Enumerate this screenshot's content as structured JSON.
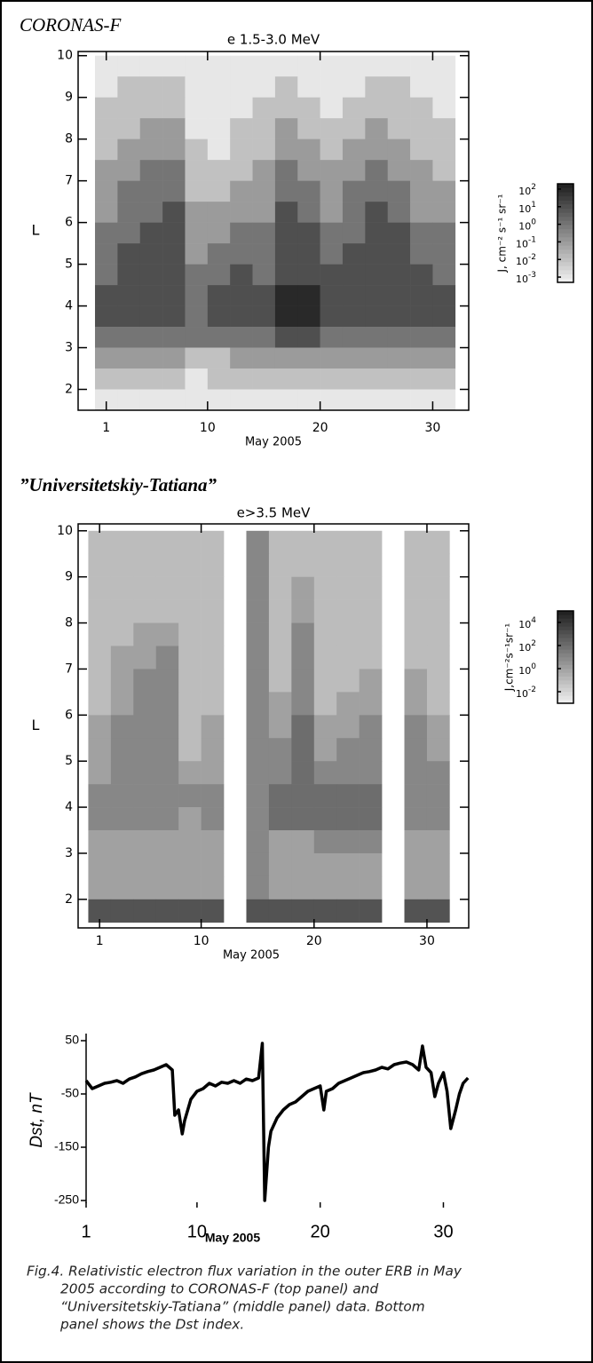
{
  "chart_data": [
    {
      "type": "heatmap",
      "panel_label": "CORONAS-F",
      "title": "e 1.5-3.0 MeV",
      "x_label": "May 2005",
      "y_label": "L",
      "x": [
        1,
        3,
        5,
        7,
        9,
        11,
        13,
        15,
        17,
        19,
        21,
        23,
        25,
        27,
        29,
        31
      ],
      "y": [
        9.75,
        9.25,
        8.75,
        8.25,
        7.75,
        7.25,
        6.75,
        6.25,
        5.75,
        5.25,
        4.75,
        4.25,
        3.75,
        3.25,
        2.75,
        2.25,
        1.75
      ],
      "z": [
        [
          -3,
          -3,
          -3,
          -3,
          -3,
          -3,
          -3,
          -3,
          -3,
          -3,
          -3,
          -3,
          -3,
          -3,
          -3,
          -3
        ],
        [
          -3,
          -2,
          -2,
          -2,
          -3,
          -3,
          -3,
          -3,
          -2,
          -3,
          -3,
          -3,
          -2,
          -2,
          -3,
          -3
        ],
        [
          -2,
          -2,
          -2,
          -2,
          -3,
          -3,
          -3,
          -2,
          -2,
          -2,
          -3,
          -2,
          -2,
          -2,
          -2,
          -3
        ],
        [
          -2,
          -2,
          -1,
          -1,
          -3,
          -3,
          -2,
          -2,
          -1,
          -2,
          -2,
          -2,
          -1,
          -2,
          -2,
          -2
        ],
        [
          -2,
          -1,
          -1,
          -1,
          -2,
          -3,
          -2,
          -2,
          -1,
          -1,
          -2,
          -1,
          -1,
          -1,
          -2,
          -2
        ],
        [
          -1,
          -1,
          0,
          0,
          -2,
          -2,
          -2,
          -1,
          0,
          -1,
          -1,
          -1,
          0,
          -1,
          -1,
          -2
        ],
        [
          -1,
          0,
          0,
          0,
          -2,
          -2,
          -1,
          -1,
          0,
          0,
          -1,
          0,
          0,
          0,
          -1,
          -1
        ],
        [
          -1,
          0,
          0,
          1,
          -1,
          -1,
          -1,
          -1,
          1,
          0,
          -1,
          0,
          1,
          0,
          -1,
          -1
        ],
        [
          0,
          0,
          1,
          1,
          -1,
          -1,
          0,
          0,
          1,
          1,
          0,
          0,
          1,
          1,
          0,
          0
        ],
        [
          0,
          1,
          1,
          1,
          -1,
          0,
          0,
          0,
          1,
          1,
          0,
          1,
          1,
          1,
          0,
          0
        ],
        [
          0,
          1,
          1,
          1,
          0,
          0,
          1,
          0,
          1,
          1,
          1,
          1,
          1,
          1,
          1,
          0
        ],
        [
          1,
          1,
          1,
          1,
          0,
          1,
          1,
          1,
          2,
          2,
          1,
          1,
          1,
          1,
          1,
          1
        ],
        [
          1,
          1,
          1,
          1,
          0,
          1,
          1,
          1,
          2,
          2,
          1,
          1,
          1,
          1,
          1,
          1
        ],
        [
          0,
          0,
          0,
          0,
          0,
          0,
          0,
          0,
          1,
          1,
          0,
          0,
          0,
          0,
          0,
          0
        ],
        [
          -1,
          -1,
          -1,
          -1,
          -2,
          -2,
          -1,
          -1,
          -1,
          -1,
          -1,
          -1,
          -1,
          -1,
          -1,
          -1
        ],
        [
          -2,
          -2,
          -2,
          -2,
          -3,
          -2,
          -2,
          -2,
          -2,
          -2,
          -2,
          -2,
          -2,
          -2,
          -2,
          -2
        ],
        [
          -3,
          -3,
          -3,
          -3,
          -3,
          -3,
          -3,
          -3,
          -3,
          -3,
          -3,
          -3,
          -3,
          -3,
          -3,
          -3
        ]
      ],
      "xlim": [
        -1.5,
        33.2
      ],
      "xticks": [
        1,
        10,
        20,
        30
      ],
      "ylim": [
        1.5,
        10.1
      ],
      "yticks": [
        2,
        3,
        4,
        5,
        6,
        7,
        8,
        9,
        10
      ],
      "colormap": [
        "#f2f2f2",
        "#1e1e1e"
      ],
      "zlim": [
        -3.3,
        2.3
      ],
      "colorbar": {
        "label": "J,  cm⁻² s⁻¹ sr⁻¹",
        "ticks": [
          {
            "value": 2,
            "label": "10"
          },
          {
            "value": 1,
            "label": "10"
          },
          {
            "value": 0,
            "label": "10"
          },
          {
            "value": -1,
            "label": "10"
          },
          {
            "value": -2,
            "label": "10"
          },
          {
            "value": -3,
            "label": "10"
          }
        ]
      }
    },
    {
      "type": "heatmap",
      "panel_label": "”Universitetskiy-Tatiana”",
      "title": "e>3.5 MeV",
      "x_label": "May 2005",
      "y_label": "L",
      "x": [
        1,
        3,
        5,
        7,
        9,
        11,
        13,
        15,
        17,
        19,
        21,
        23,
        25,
        27,
        29,
        31
      ],
      "y": [
        9.75,
        9.25,
        8.75,
        8.25,
        7.75,
        7.25,
        6.75,
        6.25,
        5.75,
        5.25,
        4.75,
        4.25,
        3.75,
        3.25,
        2.75,
        2.25,
        1.75
      ],
      "z": [
        [
          -1,
          -1,
          -1,
          -1,
          -1,
          -1,
          null,
          1,
          -1,
          -1,
          -1,
          -1,
          -1,
          null,
          -1,
          -1
        ],
        [
          -1,
          -1,
          -1,
          -1,
          -1,
          -1,
          null,
          1,
          -1,
          -1,
          -1,
          -1,
          -1,
          null,
          -1,
          -1
        ],
        [
          -1,
          -1,
          -1,
          -1,
          -1,
          -1,
          null,
          1,
          -1,
          0,
          -1,
          -1,
          -1,
          null,
          -1,
          -1
        ],
        [
          -1,
          -1,
          -1,
          -1,
          -1,
          -1,
          null,
          1,
          -1,
          0,
          -1,
          -1,
          -1,
          null,
          -1,
          -1
        ],
        [
          -1,
          -1,
          0,
          0,
          -1,
          -1,
          null,
          1,
          -1,
          1,
          -1,
          -1,
          -1,
          null,
          -1,
          -1
        ],
        [
          -1,
          0,
          0,
          1,
          -1,
          -1,
          null,
          1,
          -1,
          1,
          -1,
          -1,
          -1,
          null,
          -1,
          -1
        ],
        [
          -1,
          0,
          1,
          1,
          -1,
          -1,
          null,
          1,
          -1,
          1,
          -1,
          -1,
          0,
          null,
          0,
          -1
        ],
        [
          -1,
          0,
          1,
          1,
          -1,
          -1,
          null,
          1,
          0,
          1,
          -1,
          0,
          0,
          null,
          0,
          -1
        ],
        [
          0,
          1,
          1,
          1,
          -1,
          0,
          null,
          1,
          0,
          2,
          0,
          0,
          1,
          null,
          1,
          0
        ],
        [
          0,
          1,
          1,
          1,
          -1,
          0,
          null,
          1,
          1,
          2,
          0,
          1,
          1,
          null,
          1,
          0
        ],
        [
          0,
          1,
          1,
          1,
          0,
          0,
          null,
          1,
          1,
          2,
          1,
          1,
          1,
          null,
          1,
          1
        ],
        [
          1,
          1,
          1,
          1,
          1,
          1,
          null,
          1,
          2,
          2,
          2,
          2,
          2,
          null,
          1,
          1
        ],
        [
          1,
          1,
          1,
          1,
          0,
          1,
          null,
          1,
          2,
          2,
          2,
          2,
          2,
          null,
          1,
          1
        ],
        [
          0,
          0,
          0,
          0,
          0,
          0,
          null,
          1,
          0,
          0,
          1,
          1,
          1,
          null,
          0,
          0
        ],
        [
          0,
          0,
          0,
          0,
          0,
          0,
          null,
          1,
          0,
          0,
          0,
          0,
          0,
          null,
          0,
          0
        ],
        [
          0,
          0,
          0,
          0,
          0,
          0,
          null,
          1,
          0,
          0,
          0,
          0,
          0,
          null,
          0,
          0
        ],
        [
          3,
          3,
          3,
          3,
          3,
          3,
          null,
          3,
          3,
          3,
          3,
          3,
          3,
          null,
          3,
          3
        ]
      ],
      "xlim": [
        -0.9,
        33.7
      ],
      "xticks": [
        1,
        10,
        20,
        30
      ],
      "ylim": [
        1.38,
        10.15
      ],
      "yticks": [
        2,
        3,
        4,
        5,
        6,
        7,
        8,
        9,
        10
      ],
      "colormap": [
        "#f0f0f0",
        "#1e1e1e"
      ],
      "zlim": [
        -3,
        5
      ],
      "colorbar": {
        "label": "J,cm⁻²s⁻¹sr⁻¹",
        "ticks": [
          {
            "value": 4,
            "label": "10"
          },
          {
            "value": 2,
            "label": "10"
          },
          {
            "value": 0,
            "label": "10"
          },
          {
            "value": -2,
            "label": "10"
          }
        ]
      }
    },
    {
      "type": "line",
      "x_label": "May 2005",
      "y_label": "Dst, nT",
      "color": "#000000",
      "x": [
        1,
        1.5,
        2,
        2.5,
        3,
        3.5,
        4,
        4.5,
        5,
        5.5,
        6,
        6.5,
        7,
        7.5,
        8,
        8.2,
        8.5,
        8.8,
        9,
        9.5,
        10,
        10.5,
        11,
        11.5,
        12,
        12.5,
        13,
        13.5,
        14,
        14.5,
        15,
        15.3,
        15.5,
        15.8,
        16,
        16.5,
        17,
        17.5,
        18,
        18.5,
        19,
        19.5,
        20,
        20.3,
        20.5,
        21,
        21.5,
        22,
        22.5,
        23,
        23.5,
        24,
        24.5,
        25,
        25.5,
        26,
        26.5,
        27,
        27.5,
        28,
        28.3,
        28.6,
        29,
        29.3,
        29.6,
        30,
        30.3,
        30.6,
        31,
        31.3,
        31.6,
        32
      ],
      "values": [
        -25,
        -40,
        -35,
        -30,
        -28,
        -25,
        -30,
        -22,
        -18,
        -12,
        -8,
        -5,
        0,
        5,
        -5,
        -90,
        -80,
        -125,
        -100,
        -60,
        -45,
        -40,
        -30,
        -35,
        -28,
        -30,
        -25,
        -30,
        -22,
        -25,
        -20,
        45,
        -250,
        -150,
        -120,
        -95,
        -80,
        -70,
        -65,
        -55,
        -45,
        -40,
        -35,
        -80,
        -45,
        -40,
        -30,
        -25,
        -20,
        -15,
        -10,
        -8,
        -5,
        0,
        -3,
        5,
        8,
        10,
        5,
        -5,
        40,
        0,
        -10,
        -55,
        -30,
        -10,
        -45,
        -115,
        -80,
        -50,
        -30,
        -20
      ],
      "xlim": [
        1,
        32.2
      ],
      "xticks": [
        1,
        10,
        20,
        30
      ],
      "ylim": [
        -250,
        50
      ],
      "yticks": [
        50,
        -50,
        -150,
        -250
      ]
    }
  ],
  "caption": [
    "Fig.4. Relativistic electron flux variation in the outer ERB in May",
    "2005 according to CORONAS-F (top panel) and",
    "“Universitetskiy-Tatiana” (middle panel) data. Bottom",
    "panel shows the Dst index."
  ]
}
